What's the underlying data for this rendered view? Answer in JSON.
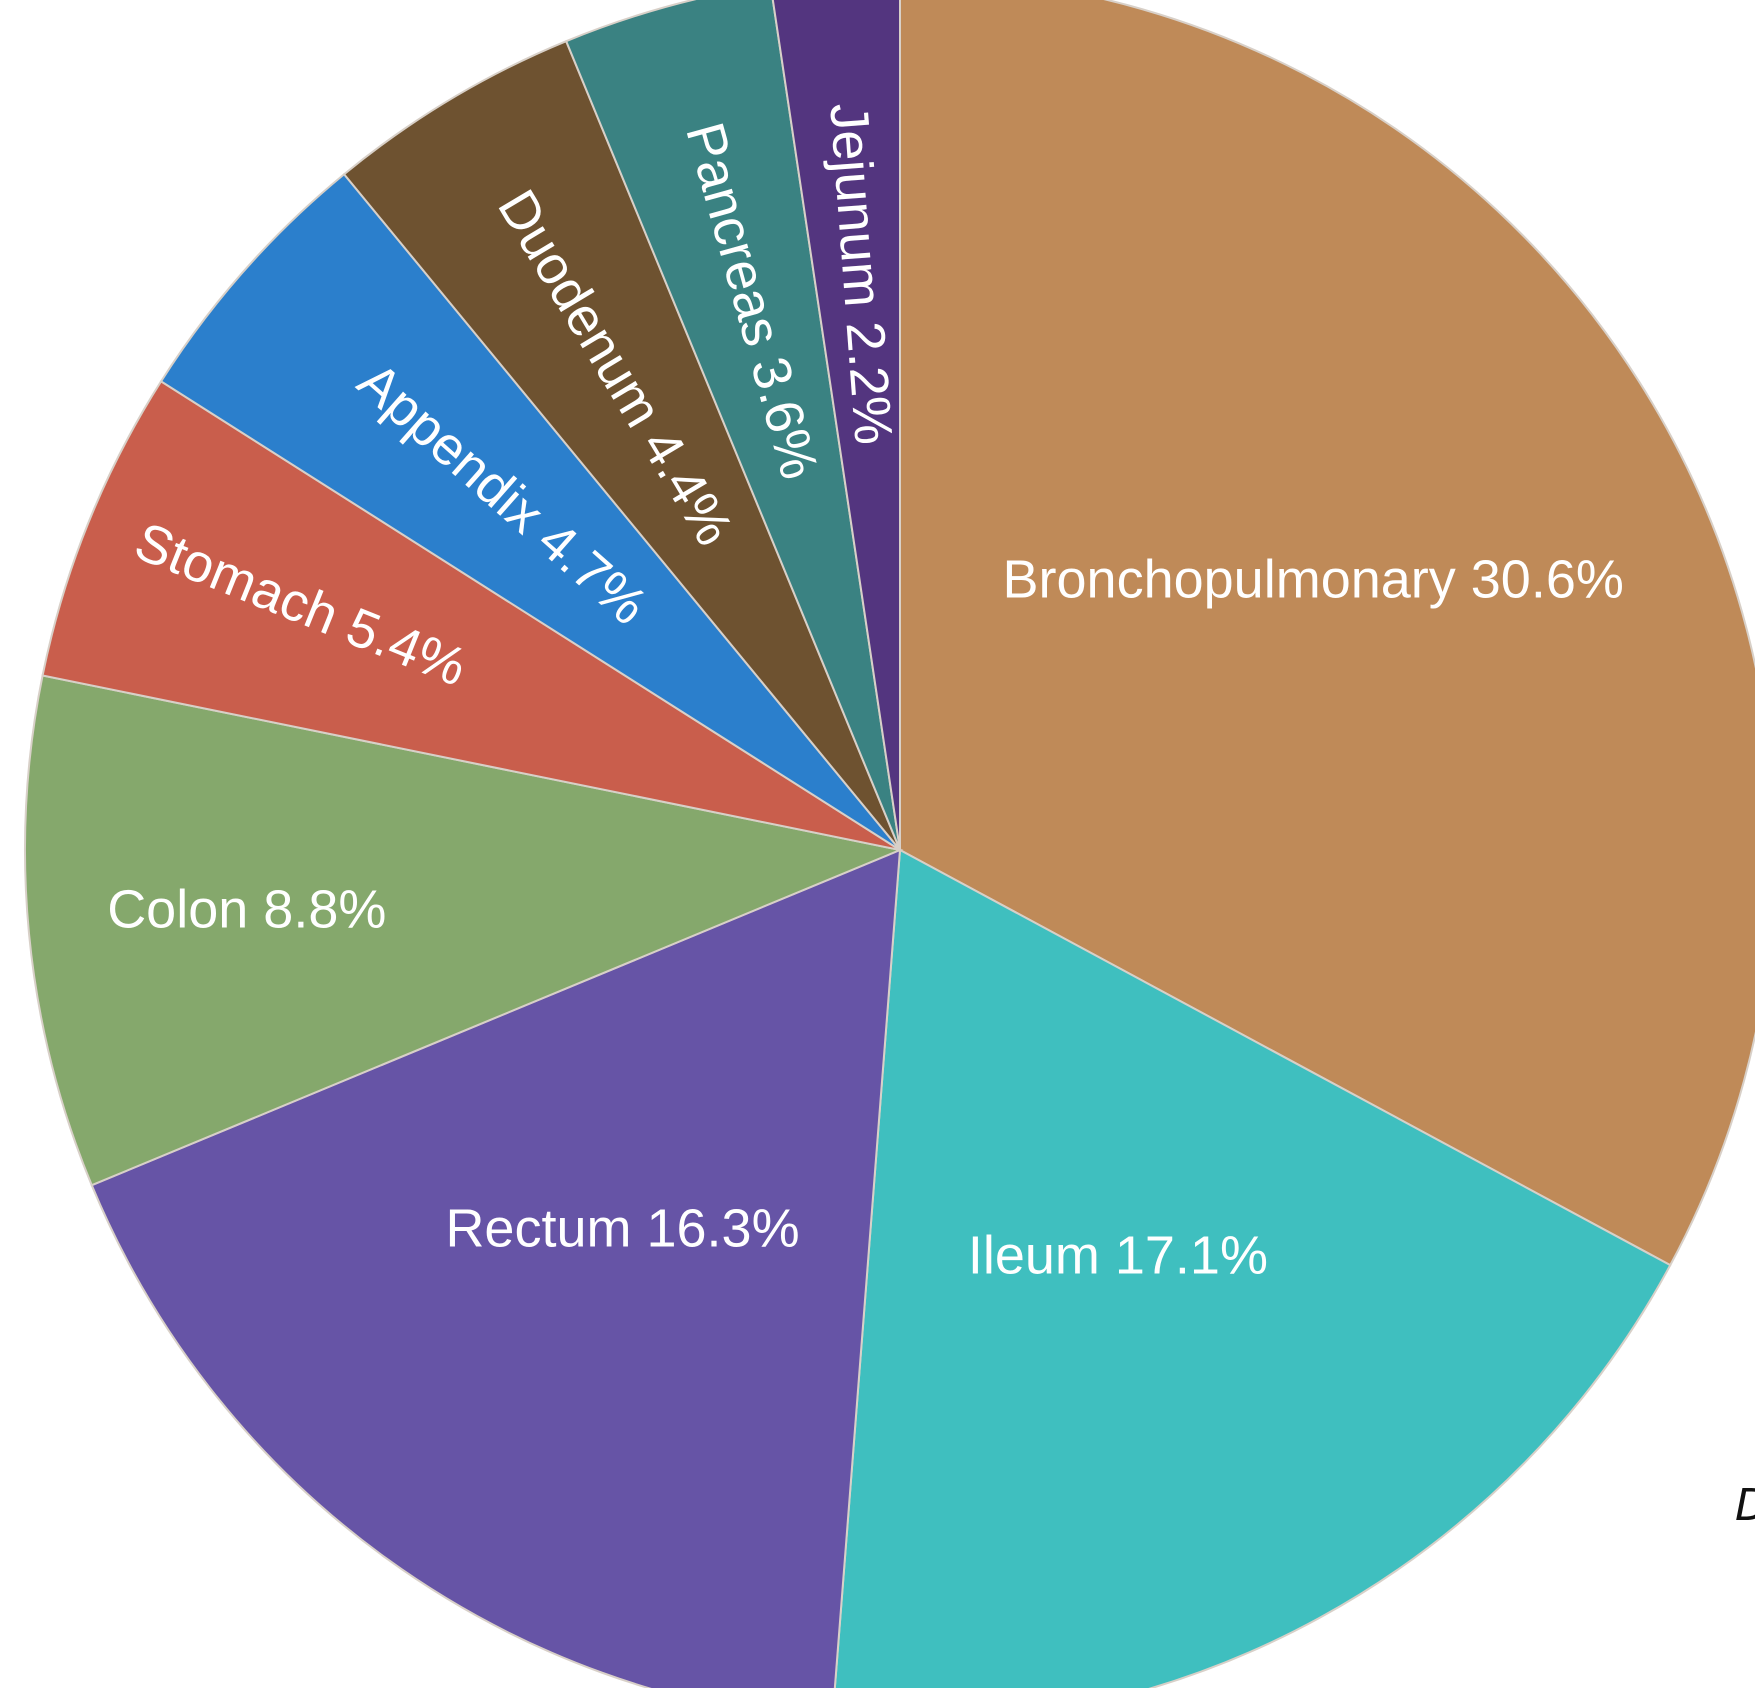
{
  "chart_data": {
    "type": "pie",
    "title": "",
    "slices": [
      {
        "label": "Bronchopulmonary 30.6%",
        "value": 30.6,
        "color": "#bf8a58"
      },
      {
        "label": "Ileum 17.1%",
        "value": 17.1,
        "color": "#3fbfbf"
      },
      {
        "label": "Rectum 16.3%",
        "value": 16.3,
        "color": "#6654a6"
      },
      {
        "label": "Colon 8.8%",
        "value": 8.8,
        "color": "#85a86c"
      },
      {
        "label": "Stomach 5.4%",
        "value": 5.4,
        "color": "#c95e4c"
      },
      {
        "label": "Appendix 4.7%",
        "value": 4.7,
        "color": "#2b7fcc"
      },
      {
        "label": "Duodenum 4.4%",
        "value": 4.4,
        "color": "#6e5230"
      },
      {
        "label": "Pancreas 3.6%",
        "value": 3.6,
        "color": "#3a8282"
      },
      {
        "label": "Jejunum 2.2%",
        "value": 2.2,
        "color": "#53357f"
      }
    ]
  },
  "edge_text": "D"
}
